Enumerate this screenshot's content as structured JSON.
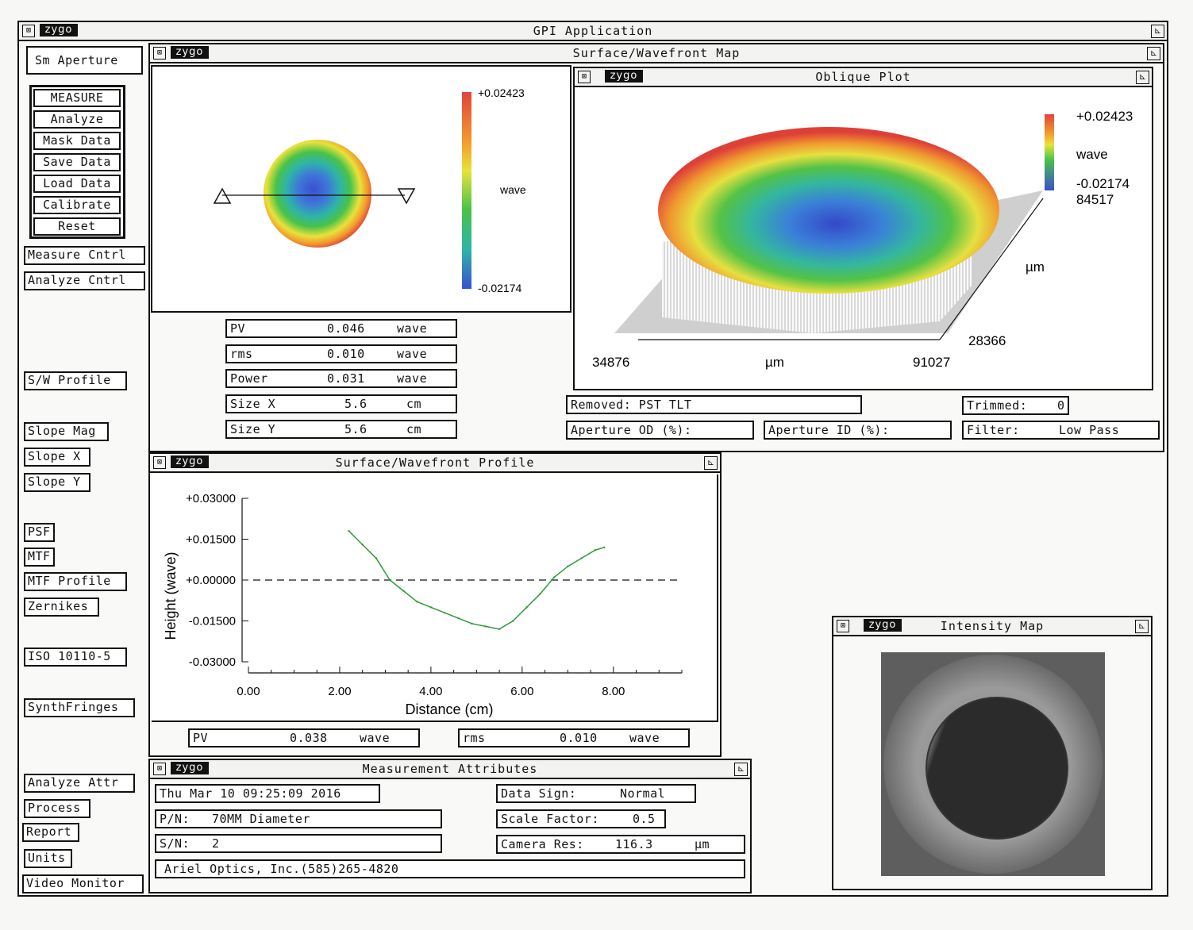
{
  "app": {
    "title": "GPI Application",
    "logo": "zygo"
  },
  "left_panel": {
    "aperture_label": "Sm Aperture",
    "main_buttons": [
      "MEASURE",
      "Analyze",
      "Mask Data",
      "Save Data",
      "Load Data",
      "Calibrate",
      "Reset"
    ],
    "buttons": {
      "measure_cntrl": "Measure Cntrl",
      "analyze_cntrl": "Analyze Cntrl",
      "sw_profile": "S/W Profile",
      "slope_mag": "Slope Mag",
      "slope_x": "Slope X",
      "slope_y": "Slope Y",
      "psf": "PSF",
      "mtf": "MTF",
      "mtf_profile": "MTF Profile",
      "zernikes": "Zernikes",
      "iso": "ISO 10110-5",
      "synth": "SynthFringes",
      "analyze_attr": "Analyze Attr",
      "process": "Process",
      "report": "Report",
      "units": "Units",
      "video": "Video Monitor"
    }
  },
  "surface_map": {
    "title": "Surface/Wavefront Map",
    "colorbar": {
      "max": "+0.02423",
      "min": "-0.02174",
      "unit": "wave"
    },
    "results": [
      {
        "label": "PV",
        "value": "0.046",
        "unit": "wave"
      },
      {
        "label": "rms",
        "value": "0.010",
        "unit": "wave"
      },
      {
        "label": "Power",
        "value": "0.031",
        "unit": "wave"
      },
      {
        "label": "Size X",
        "value": "5.6",
        "unit": "cm"
      },
      {
        "label": "Size Y",
        "value": "5.6",
        "unit": "cm"
      }
    ]
  },
  "oblique_plot": {
    "title": "Oblique Plot",
    "colorbar": {
      "max": "+0.02423",
      "unit": "wave",
      "min": "-0.02174",
      "extra": "84517"
    },
    "axis": {
      "x_left": "34876",
      "x_unit": "µm",
      "x_right": "91027",
      "y_bottom": "28366",
      "y_unit": "µm"
    },
    "removed": "Removed: PST TLT",
    "trimmed_label": "Trimmed:",
    "trimmed_value": "0",
    "aperture_od": "Aperture OD (%):",
    "aperture_id": "Aperture ID (%):",
    "filter_label": "Filter:",
    "filter_value": "Low Pass"
  },
  "profile": {
    "title": "Surface/Wavefront Profile",
    "pv": {
      "label": "PV",
      "value": "0.038",
      "unit": "wave"
    },
    "rms": {
      "label": "rms",
      "value": "0.010",
      "unit": "wave"
    }
  },
  "chart_data": {
    "type": "line",
    "xlabel": "Distance (cm)",
    "ylabel": "Height (wave)",
    "xlim": [
      0,
      9.5
    ],
    "ylim": [
      -0.03,
      0.03
    ],
    "x_ticks": [
      "0.00",
      "2.00",
      "4.00",
      "6.00",
      "8.00"
    ],
    "y_ticks": [
      "+0.03000",
      "+0.01500",
      "+0.00000",
      "-0.01500",
      "-0.03000"
    ],
    "reference_line": 0,
    "series": [
      {
        "color": "#2e9a3a",
        "x": [
          2.2,
          2.5,
          2.8,
          3.1,
          3.4,
          3.7,
          4.0,
          4.3,
          4.6,
          4.9,
          5.2,
          5.5,
          5.8,
          6.1,
          6.4,
          6.7,
          7.0,
          7.3,
          7.6,
          7.8
        ],
        "y": [
          0.018,
          0.013,
          0.008,
          0.0,
          -0.004,
          -0.008,
          -0.01,
          -0.012,
          -0.014,
          -0.016,
          -0.017,
          -0.018,
          -0.015,
          -0.01,
          -0.005,
          0.001,
          0.005,
          0.008,
          0.011,
          0.012
        ]
      }
    ]
  },
  "attributes": {
    "title": "Measurement Attributes",
    "date": "Thu Mar 10 09:25:09 2016",
    "pn_label": "P/N:",
    "pn_value": "70MM Diameter",
    "sn_label": "S/N:",
    "sn_value": "2",
    "company": "Ariel Optics, Inc.(585)265-4820",
    "data_sign_label": "Data Sign:",
    "data_sign_value": "Normal",
    "scale_label": "Scale Factor:",
    "scale_value": "0.5",
    "camera_label": "Camera Res:",
    "camera_value": "116.3",
    "camera_unit": "µm"
  },
  "intensity": {
    "title": "Intensity Map"
  }
}
